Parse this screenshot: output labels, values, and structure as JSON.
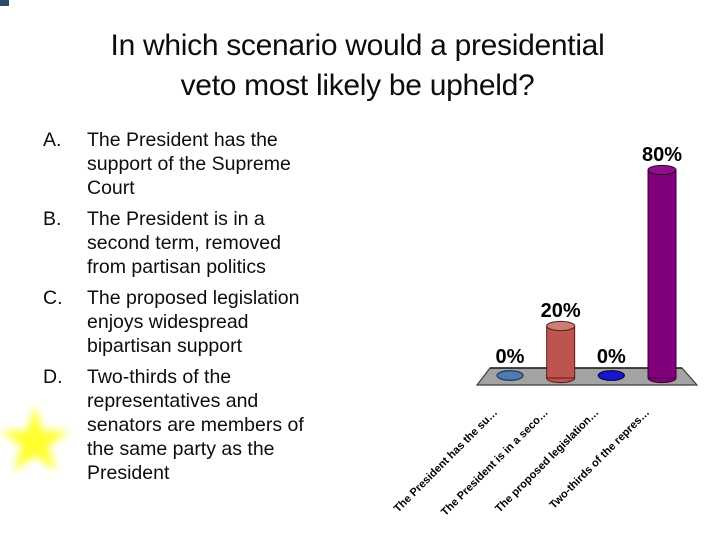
{
  "slide": {
    "title": "In which scenario would a presidential\nveto most likely be upheld?",
    "options": [
      {
        "letter": "A.",
        "text": "The President has the\nsupport of the Supreme\nCourt"
      },
      {
        "letter": "B.",
        "text": "The President is in a\nsecond term, removed\nfrom partisan politics"
      },
      {
        "letter": "C.",
        "text": "The proposed legislation\nenjoys widespread\nbipartisan support"
      },
      {
        "letter": "D.",
        "text": "Two-thirds of the\nrepresentatives and\nsenators are members of\nthe same party as the\nPresident"
      }
    ]
  },
  "decorations": {
    "corner_square_color": "#2d4a6b",
    "star_color": "#ffff2e"
  },
  "chart_data": {
    "type": "bar",
    "style": "3d-cylinder-poll",
    "title": "",
    "xlabel": "",
    "ylabel": "",
    "categories": [
      "The President has the su…",
      "The President is in a seco…",
      "The proposed legislation…",
      "Two-thirds of the repres…"
    ],
    "values": [
      0,
      20,
      0,
      80
    ],
    "value_labels": [
      "0%",
      "20%",
      "0%",
      "80%"
    ],
    "bar_colors": [
      "#4f7cae",
      "#bd544f",
      "#1717cc",
      "#80007d"
    ],
    "bar_colors_top": [
      "#6b94c4",
      "#c97f76",
      "#3a3ad6",
      "#8e0f8b"
    ],
    "bar_colors_dark": [
      "#16365c",
      "#5f1a16",
      "#00004d",
      "#36002f"
    ],
    "ylim": [
      0,
      100
    ],
    "gridlines": false,
    "legend": "none",
    "floor_color": "#a3a3a3",
    "floor_edge_color": "#3f3f3f"
  }
}
